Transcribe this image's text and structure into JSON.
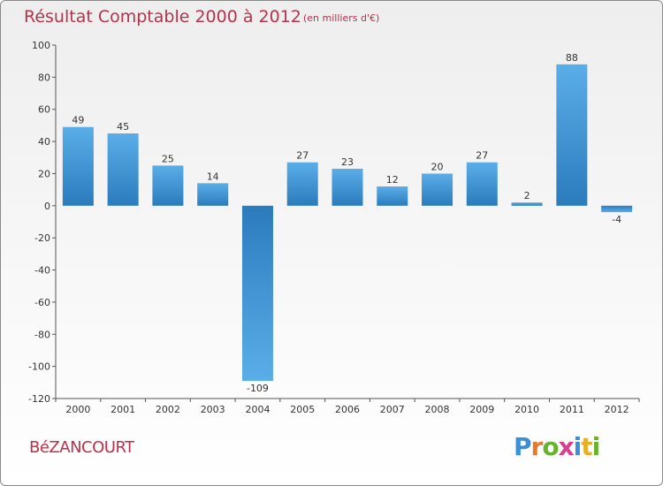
{
  "title": "Résultat Comptable 2000 à 2012",
  "subtitle": "(en milliers d'€)",
  "commune": "BéZANCOURT",
  "logo": {
    "text": "Proxiti",
    "letters": [
      "P",
      "r",
      "o",
      "x",
      "i",
      "t",
      "i"
    ],
    "colors": [
      "#3a8fd6",
      "#e8782a",
      "#67b32e",
      "#d93f8f",
      "#3a8fd6",
      "#e8b02a",
      "#67b32e"
    ]
  },
  "chart_data": {
    "type": "bar",
    "categories": [
      "2000",
      "2001",
      "2002",
      "2003",
      "2004",
      "2005",
      "2006",
      "2007",
      "2008",
      "2009",
      "2010",
      "2011",
      "2012"
    ],
    "values": [
      49,
      45,
      25,
      14,
      -109,
      27,
      23,
      12,
      20,
      27,
      2,
      88,
      -4
    ],
    "data_labels": [
      "49",
      "45",
      "25",
      "14",
      "-109",
      "27",
      "23",
      "12",
      "20",
      "27",
      "2",
      "88",
      "-4"
    ],
    "yticks": [
      100,
      80,
      60,
      40,
      20,
      0,
      -20,
      -40,
      -60,
      -80,
      -100,
      -120
    ],
    "ylim": [
      -120,
      100
    ],
    "grid": false,
    "colors": {
      "bar_light": "#5aaee8",
      "bar_dark": "#2b7bbd",
      "axis": "#555555",
      "text": "#333333"
    }
  }
}
